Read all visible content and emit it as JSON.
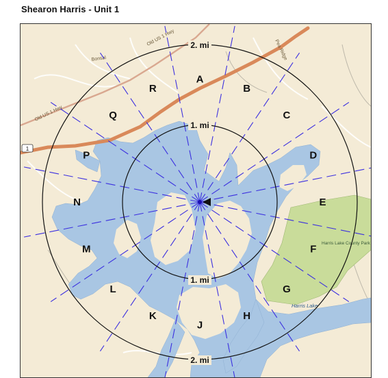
{
  "title": "Shearon Harris - Unit 1",
  "rings": [
    {
      "name": "2-mile-ring",
      "label": "2. mi"
    },
    {
      "name": "1-mile-ring",
      "label": "1. mi"
    }
  ],
  "sectors": [
    "A",
    "B",
    "C",
    "D",
    "E",
    "F",
    "G",
    "H",
    "J",
    "K",
    "L",
    "M",
    "N",
    "P",
    "Q",
    "R"
  ],
  "map_labels": {
    "road_main": "Old US 1 Hwy",
    "road_upper": "Old US 1 Hwy",
    "town": "Bonsal",
    "road_ne": "Pea Ridge",
    "route_shield": "1",
    "park": "Harris Lake County Park",
    "lake": "Harris Lake"
  },
  "colors": {
    "land": "#f4ebd6",
    "water": "#a9c6e3",
    "park": "#c9dc9a",
    "road": "#d9895a",
    "sector_lines": "#3b2fe0",
    "rings": "#111111"
  }
}
